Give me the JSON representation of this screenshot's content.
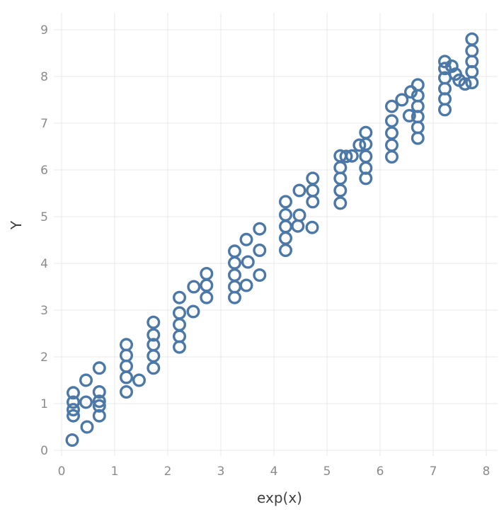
{
  "page": {
    "background": "#ffffff"
  },
  "chart_data": {
    "type": "scatter",
    "title": "",
    "xlabel": "exp(x)",
    "ylabel": "Y",
    "xlim": [
      -0.1,
      8.2
    ],
    "ylim": [
      -0.15,
      9.25
    ],
    "x_ticks": [
      0,
      1,
      2,
      3,
      4,
      5,
      6,
      7,
      8
    ],
    "y_ticks": [
      0,
      1,
      2,
      3,
      4,
      5,
      6,
      7,
      8,
      9
    ],
    "grid": true,
    "legend": false,
    "marker": {
      "shape": "open-circle",
      "color": "#4c78a8",
      "radius": 7.8,
      "stroke_width": 3.4
    },
    "grid_color": "#e8e8e8",
    "tick_label_color": "#8b8b8b",
    "axis_title_color": "#3f3f3f",
    "points": [
      [
        0.22,
        1.23
      ],
      [
        0.22,
        1.03
      ],
      [
        0.22,
        0.87
      ],
      [
        0.22,
        0.74
      ],
      [
        0.2,
        0.22
      ],
      [
        0.46,
        1.5
      ],
      [
        0.46,
        1.03
      ],
      [
        0.48,
        0.5
      ],
      [
        0.71,
        1.76
      ],
      [
        0.71,
        1.25
      ],
      [
        0.71,
        1.05
      ],
      [
        0.71,
        0.95
      ],
      [
        0.71,
        0.74
      ],
      [
        1.22,
        2.26
      ],
      [
        1.22,
        2.03
      ],
      [
        1.22,
        1.8
      ],
      [
        1.22,
        1.56
      ],
      [
        1.22,
        1.25
      ],
      [
        1.46,
        1.5
      ],
      [
        1.73,
        2.74
      ],
      [
        1.73,
        2.47
      ],
      [
        1.73,
        2.26
      ],
      [
        1.73,
        2.02
      ],
      [
        1.73,
        1.76
      ],
      [
        2.22,
        3.27
      ],
      [
        2.22,
        2.94
      ],
      [
        2.22,
        2.69
      ],
      [
        2.22,
        2.44
      ],
      [
        2.22,
        2.21
      ],
      [
        2.48,
        2.97
      ],
      [
        2.73,
        3.78
      ],
      [
        2.73,
        3.53
      ],
      [
        2.73,
        3.27
      ],
      [
        2.49,
        3.5
      ],
      [
        3.26,
        4.26
      ],
      [
        3.26,
        4.01
      ],
      [
        3.26,
        3.75
      ],
      [
        3.26,
        3.5
      ],
      [
        3.26,
        3.27
      ],
      [
        3.51,
        4.03
      ],
      [
        3.48,
        3.53
      ],
      [
        3.73,
        4.74
      ],
      [
        3.73,
        4.28
      ],
      [
        3.73,
        3.75
      ],
      [
        3.48,
        4.51
      ],
      [
        4.22,
        5.32
      ],
      [
        4.22,
        5.04
      ],
      [
        4.22,
        4.79
      ],
      [
        4.22,
        4.54
      ],
      [
        4.22,
        4.28
      ],
      [
        4.48,
        5.56
      ],
      [
        4.48,
        5.03
      ],
      [
        4.45,
        4.8
      ],
      [
        4.73,
        5.82
      ],
      [
        4.73,
        5.56
      ],
      [
        4.73,
        5.32
      ],
      [
        4.72,
        4.77
      ],
      [
        5.25,
        6.3
      ],
      [
        5.25,
        6.05
      ],
      [
        5.25,
        5.82
      ],
      [
        5.25,
        5.56
      ],
      [
        5.25,
        5.29
      ],
      [
        5.36,
        6.29
      ],
      [
        5.47,
        6.3
      ],
      [
        5.73,
        6.8
      ],
      [
        5.73,
        6.55
      ],
      [
        5.73,
        6.29
      ],
      [
        5.73,
        6.04
      ],
      [
        5.73,
        5.82
      ],
      [
        5.61,
        6.53
      ],
      [
        6.22,
        7.36
      ],
      [
        6.22,
        7.05
      ],
      [
        6.22,
        6.79
      ],
      [
        6.22,
        6.53
      ],
      [
        6.22,
        6.28
      ],
      [
        6.41,
        7.5
      ],
      [
        6.58,
        7.67
      ],
      [
        6.71,
        7.82
      ],
      [
        6.71,
        7.59
      ],
      [
        6.71,
        7.36
      ],
      [
        6.71,
        7.14
      ],
      [
        6.71,
        6.91
      ],
      [
        6.71,
        6.68
      ],
      [
        6.55,
        7.16
      ],
      [
        7.22,
        8.32
      ],
      [
        7.22,
        8.17
      ],
      [
        7.22,
        7.97
      ],
      [
        7.22,
        7.74
      ],
      [
        7.22,
        7.52
      ],
      [
        7.22,
        7.29
      ],
      [
        7.35,
        8.22
      ],
      [
        7.42,
        8.05
      ],
      [
        7.49,
        7.92
      ],
      [
        7.6,
        7.84
      ],
      [
        7.73,
        8.8
      ],
      [
        7.73,
        8.55
      ],
      [
        7.73,
        8.32
      ],
      [
        7.73,
        8.1
      ],
      [
        7.73,
        7.87
      ]
    ]
  }
}
